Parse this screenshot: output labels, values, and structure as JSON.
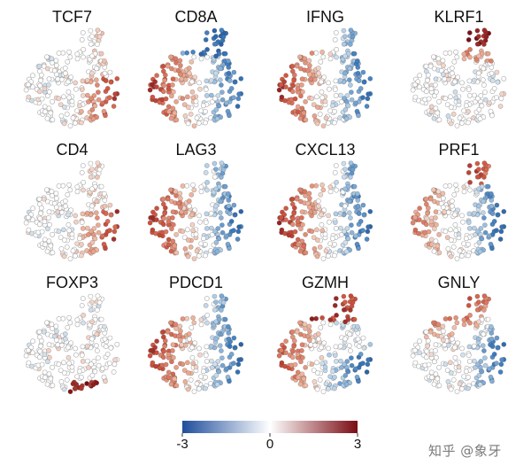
{
  "chart_data": {
    "type": "scatter",
    "description_kind": "grid of tSNE feature plots, cells colored by z-scored gene expression",
    "layout": "3 rows x 4 columns",
    "panels": [
      {
        "gene": "TCF7",
        "high_region": "right-lower",
        "low_region": "none"
      },
      {
        "gene": "CD8A",
        "high_region": "left",
        "low_region": "right-and-top"
      },
      {
        "gene": "IFNG",
        "high_region": "left",
        "low_region": "right"
      },
      {
        "gene": "KLRF1",
        "high_region": "top-tip",
        "low_region": "none"
      },
      {
        "gene": "CD4",
        "high_region": "right-lower",
        "low_region": "none"
      },
      {
        "gene": "LAG3",
        "high_region": "left",
        "low_region": "right"
      },
      {
        "gene": "CXCL13",
        "high_region": "left",
        "low_region": "right"
      },
      {
        "gene": "PRF1",
        "high_region": "top-and-left",
        "low_region": "right"
      },
      {
        "gene": "FOXP3",
        "high_region": "bottom",
        "low_region": "none"
      },
      {
        "gene": "PDCD1",
        "high_region": "left",
        "low_region": "right"
      },
      {
        "gene": "GZMH",
        "high_region": "left-and-top",
        "low_region": "right-bottom"
      },
      {
        "gene": "GNLY",
        "high_region": "top",
        "low_region": "right"
      }
    ],
    "colorbar": {
      "min": -3,
      "max": 3,
      "ticks": [
        {
          "value": -3,
          "label": "-3"
        },
        {
          "value": 0,
          "label": "0"
        },
        {
          "value": 3,
          "label": "3"
        }
      ],
      "colors": {
        "low": "#1f4e9c",
        "mid": "#ffffff",
        "high": "#7a0c14"
      }
    },
    "marker": {
      "fill_empty": "#ffffff",
      "edge": "#a9a9a9"
    }
  },
  "watermark": "知乎 @象牙"
}
